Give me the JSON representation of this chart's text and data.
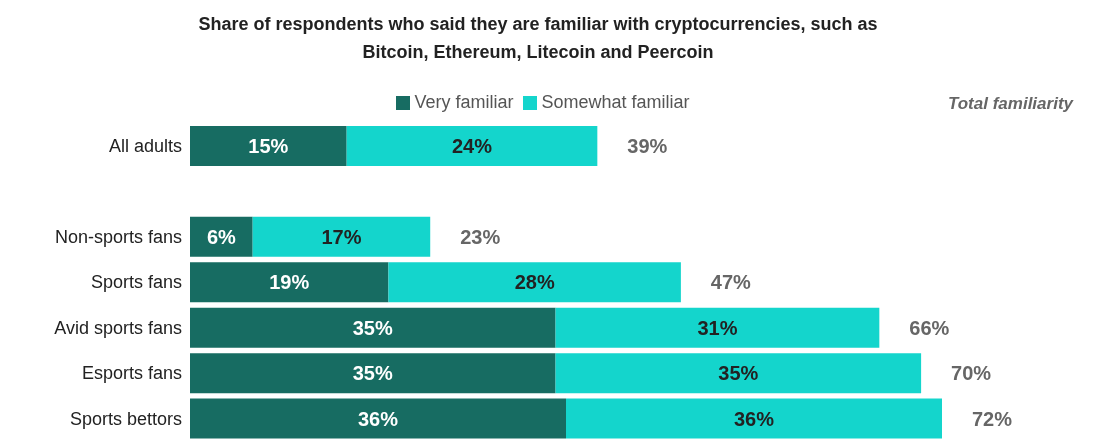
{
  "chart_data": {
    "type": "bar",
    "orientation": "horizontal",
    "stacked": true,
    "title": "Share of respondents who said they are familiar with cryptocurrencies, such as Bitcoin, Ethereum, Litecoin and Peercoin",
    "categories": [
      "All adults",
      null,
      "Non-sports fans",
      "Sports fans",
      "Avid sports fans",
      "Esports fans",
      "Sports bettors"
    ],
    "series": [
      {
        "name": "Very familiar",
        "color": "#176c62",
        "values": [
          15,
          null,
          6,
          19,
          35,
          35,
          36
        ],
        "value_labels": [
          "15%",
          null,
          "6%",
          "19%",
          "35%",
          "35%",
          "36%"
        ]
      },
      {
        "name": "Somewhat familiar",
        "color": "#14d5cc",
        "values": [
          24,
          null,
          17,
          28,
          31,
          35,
          36
        ],
        "value_labels": [
          "24%",
          null,
          "17%",
          "28%",
          "31%",
          "35%",
          "36%"
        ]
      }
    ],
    "totals": [
      "39%",
      null,
      "23%",
      "47%",
      "66%",
      "70%",
      "72%"
    ],
    "annotations": [
      "Total familiarity"
    ],
    "legend": "top"
  }
}
